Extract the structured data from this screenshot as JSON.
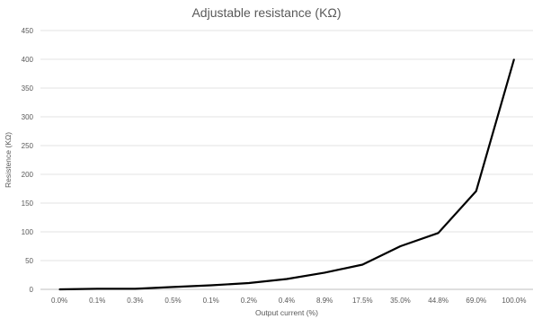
{
  "chart_data": {
    "type": "line",
    "title": "Adjustable resistance (KΩ)",
    "xlabel": "Output current (%)",
    "ylabel": "Resistence (KΩ)",
    "categories": [
      "0.0%",
      "0.1%",
      "0.3%",
      "0.5%",
      "0.1%",
      "0.2%",
      "0.4%",
      "8.9%",
      "17.5%",
      "35.0%",
      "44.8%",
      "69.0%",
      "100.0%"
    ],
    "series": [
      {
        "values": [
          0,
          1,
          1,
          4,
          7,
          11,
          18,
          29,
          43,
          75,
          98,
          171,
          400
        ],
        "color": "#000000"
      }
    ],
    "ylim": [
      0,
      450
    ],
    "yticks": [
      0,
      50,
      100,
      150,
      200,
      250,
      300,
      350,
      400,
      450
    ],
    "grid": true,
    "legend": "none"
  }
}
